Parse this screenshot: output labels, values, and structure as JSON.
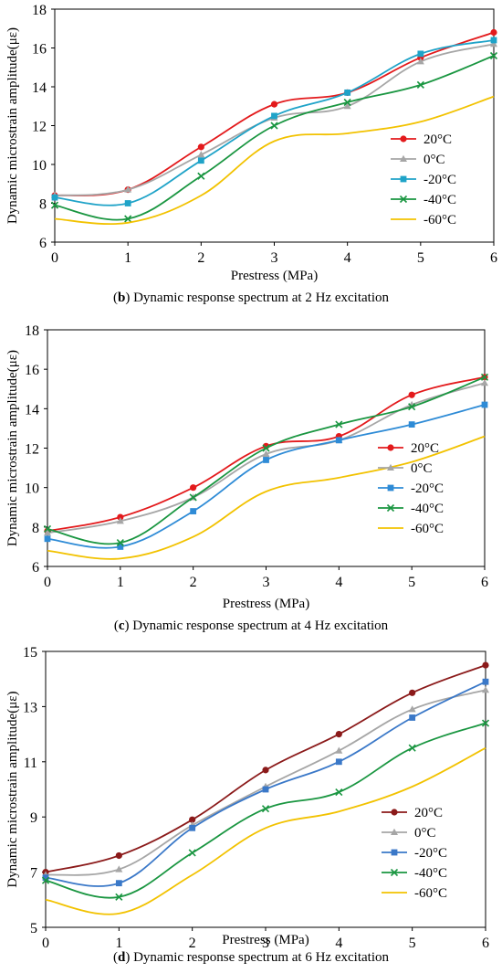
{
  "chart_data": [
    {
      "type": "line",
      "caption_letter": "b",
      "caption_text": " Dynamic response spectrum at 2 Hz excitation",
      "xlabel": "Prestress (MPa)",
      "ylabel": "Dynamic microstrain amplitude(με)",
      "x": [
        0,
        1,
        2,
        3,
        4,
        5,
        6
      ],
      "xlim": [
        0,
        6
      ],
      "ylim": [
        6,
        18
      ],
      "yticks": [
        6,
        8,
        10,
        12,
        14,
        16,
        18
      ],
      "legend_position": "lower-right",
      "series": [
        {
          "name": "20°C",
          "color": "#e31a1c",
          "marker": "circle",
          "values": [
            8.4,
            8.7,
            10.9,
            13.1,
            13.7,
            15.5,
            16.8
          ]
        },
        {
          "name": "0°C",
          "color": "#a6a6a6",
          "marker": "triangle",
          "values": [
            8.4,
            8.7,
            10.5,
            12.4,
            13.0,
            15.3,
            16.2
          ]
        },
        {
          "name": "-20°C",
          "color": "#1fa3c8",
          "marker": "square",
          "values": [
            8.3,
            8.0,
            10.2,
            12.5,
            13.7,
            15.7,
            16.4
          ]
        },
        {
          "name": "-40°C",
          "color": "#1a9641",
          "marker": "x",
          "values": [
            7.9,
            7.2,
            9.4,
            12.0,
            13.2,
            14.1,
            15.6
          ]
        },
        {
          "name": "-60°C",
          "color": "#f2c200",
          "marker": "none",
          "values": [
            7.2,
            7.0,
            8.4,
            11.2,
            11.6,
            12.2,
            13.5
          ]
        }
      ]
    },
    {
      "type": "line",
      "caption_letter": "c",
      "caption_text": " Dynamic response spectrum at 4 Hz excitation",
      "xlabel": "Prestress (MPa)",
      "ylabel": "Dynamic microstrain amplitude(με)",
      "x": [
        0,
        1,
        2,
        3,
        4,
        5,
        6
      ],
      "xlim": [
        0,
        6
      ],
      "ylim": [
        6,
        18
      ],
      "yticks": [
        6,
        8,
        10,
        12,
        14,
        16,
        18
      ],
      "legend_position": "lower-right",
      "series": [
        {
          "name": "20°C",
          "color": "#e31a1c",
          "marker": "circle",
          "values": [
            7.8,
            8.5,
            10.0,
            12.1,
            12.6,
            14.7,
            15.6
          ]
        },
        {
          "name": "0°C",
          "color": "#a6a6a6",
          "marker": "triangle",
          "values": [
            7.7,
            8.3,
            9.5,
            11.7,
            12.4,
            14.2,
            15.3
          ]
        },
        {
          "name": "-20°C",
          "color": "#2e8bd6",
          "marker": "square",
          "values": [
            7.4,
            7.0,
            8.8,
            11.4,
            12.4,
            13.2,
            14.2
          ]
        },
        {
          "name": "-40°C",
          "color": "#1a9641",
          "marker": "x",
          "values": [
            7.9,
            7.2,
            9.5,
            12.0,
            13.2,
            14.1,
            15.6
          ]
        },
        {
          "name": "-60°C",
          "color": "#f2c200",
          "marker": "none",
          "values": [
            6.8,
            6.4,
            7.5,
            9.8,
            10.5,
            11.3,
            12.6
          ]
        }
      ]
    },
    {
      "type": "line",
      "caption_letter": "d",
      "caption_text": " Dynamic response spectrum at 6 Hz excitation",
      "xlabel": "Prestress (MPa)",
      "ylabel": "Dynamic microstrain amplitude(με)",
      "x": [
        0,
        1,
        2,
        3,
        4,
        5,
        6
      ],
      "xlim": [
        0,
        6
      ],
      "ylim": [
        5,
        15
      ],
      "yticks": [
        5,
        7,
        9,
        11,
        13,
        15
      ],
      "legend_position": "lower-right",
      "series": [
        {
          "name": "20°C",
          "color": "#8b1a1a",
          "marker": "circle",
          "values": [
            7.0,
            7.6,
            8.9,
            10.7,
            12.0,
            13.5,
            14.5
          ]
        },
        {
          "name": "0°C",
          "color": "#a6a6a6",
          "marker": "triangle",
          "values": [
            6.9,
            7.1,
            8.7,
            10.1,
            11.4,
            12.9,
            13.6
          ]
        },
        {
          "name": "-20°C",
          "color": "#3a78c8",
          "marker": "square",
          "values": [
            6.8,
            6.6,
            8.6,
            10.0,
            11.0,
            12.6,
            13.9
          ]
        },
        {
          "name": "-40°C",
          "color": "#1a9641",
          "marker": "x",
          "values": [
            6.7,
            6.1,
            7.7,
            9.3,
            9.9,
            11.5,
            12.4
          ]
        },
        {
          "name": "-60°C",
          "color": "#f2c200",
          "marker": "none",
          "values": [
            6.0,
            5.5,
            6.9,
            8.6,
            9.2,
            10.1,
            11.5
          ]
        }
      ]
    }
  ]
}
